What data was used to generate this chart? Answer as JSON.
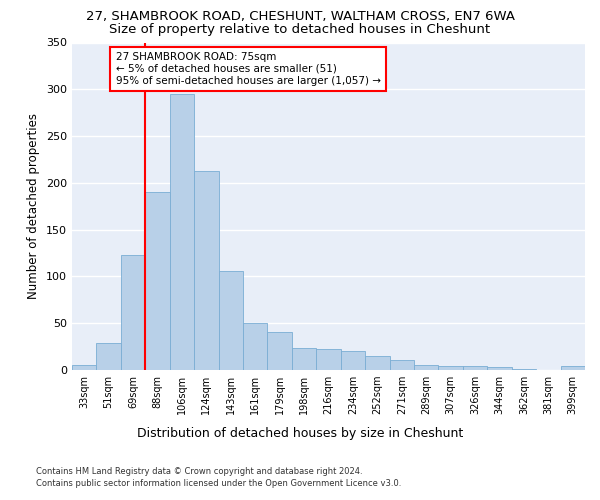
{
  "title_line1": "27, SHAMBROOK ROAD, CHESHUNT, WALTHAM CROSS, EN7 6WA",
  "title_line2": "Size of property relative to detached houses in Cheshunt",
  "xlabel": "Distribution of detached houses by size in Cheshunt",
  "ylabel": "Number of detached properties",
  "categories": [
    "33sqm",
    "51sqm",
    "69sqm",
    "88sqm",
    "106sqm",
    "124sqm",
    "143sqm",
    "161sqm",
    "179sqm",
    "198sqm",
    "216sqm",
    "234sqm",
    "252sqm",
    "271sqm",
    "289sqm",
    "307sqm",
    "326sqm",
    "344sqm",
    "362sqm",
    "381sqm",
    "399sqm"
  ],
  "values": [
    5,
    29,
    123,
    190,
    295,
    213,
    106,
    50,
    41,
    23,
    22,
    20,
    15,
    11,
    5,
    4,
    4,
    3,
    1,
    0,
    4
  ],
  "bar_color": "#b8d0e8",
  "bar_edge_color": "#7aadd4",
  "red_line_x": 2.5,
  "annotation_title": "27 SHAMBROOK ROAD: 75sqm",
  "annotation_line1": "← 5% of detached houses are smaller (51)",
  "annotation_line2": "95% of semi-detached houses are larger (1,057) →",
  "ylim": [
    0,
    350
  ],
  "yticks": [
    0,
    50,
    100,
    150,
    200,
    250,
    300,
    350
  ],
  "footnote1": "Contains HM Land Registry data © Crown copyright and database right 2024.",
  "footnote2": "Contains public sector information licensed under the Open Government Licence v3.0.",
  "bg_color": "#e8eef8",
  "grid_color": "#ffffff",
  "title1_fontsize": 9.5,
  "title2_fontsize": 9.5,
  "annot_fontsize": 7.5,
  "ylabel_fontsize": 8.5,
  "xlabel_fontsize": 9,
  "tick_fontsize": 7,
  "footnote_fontsize": 6
}
